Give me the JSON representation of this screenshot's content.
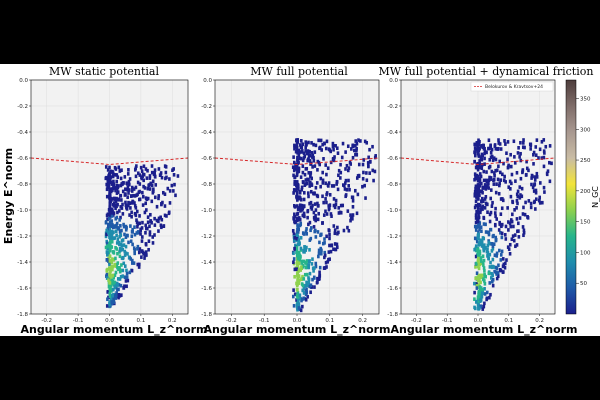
{
  "chart_data": [
    {
      "type": "heatmap",
      "title": "MW static potential",
      "xlabel": "Angular momentum L_z^norm",
      "ylabel": "Energy E^norm",
      "xlim": [
        -0.25,
        0.25
      ],
      "ylim": [
        -1.8,
        0.0
      ],
      "x_ticks": [
        "-0.2",
        "-0.1",
        "0.0",
        "0.1",
        "0.2"
      ],
      "y_ticks": [
        "-1.8",
        "-1.6",
        "-1.4",
        "-1.2",
        "-1.0",
        "-0.8",
        "-0.6",
        "-0.4",
        "-0.2",
        "0.0"
      ],
      "grid": true,
      "boundary_curve": {
        "x": [
          -0.25,
          -0.15,
          -0.05,
          0.0,
          0.05,
          0.15,
          0.25
        ],
        "y": [
          -0.6,
          -0.62,
          -0.64,
          -0.65,
          -0.64,
          -0.62,
          -0.6
        ]
      },
      "distribution": {
        "x_center": 0.0,
        "x_spread_low": 0.0,
        "x_spread_high": 0.22,
        "e_min": -1.76,
        "e_max": -0.66,
        "peak_energy": -1.45
      },
      "legend": null
    },
    {
      "type": "heatmap",
      "title": "MW full potential",
      "xlabel": "Angular momentum L_z^norm",
      "ylabel": "",
      "xlim": [
        -0.25,
        0.25
      ],
      "ylim": [
        -1.8,
        0.0
      ],
      "x_ticks": [
        "-0.2",
        "-0.1",
        "0.0",
        "0.1",
        "0.2"
      ],
      "y_ticks": [
        "-1.8",
        "-1.6",
        "-1.4",
        "-1.2",
        "-1.0",
        "-0.8",
        "-0.6",
        "-0.4",
        "-0.2",
        "0.0"
      ],
      "grid": true,
      "boundary_curve": {
        "x": [
          -0.25,
          -0.15,
          -0.05,
          0.0,
          0.05,
          0.15,
          0.25
        ],
        "y": [
          -0.6,
          -0.62,
          -0.64,
          -0.65,
          -0.64,
          -0.62,
          -0.6
        ]
      },
      "distribution": {
        "x_center": 0.0,
        "x_spread_low": 0.0,
        "x_spread_high": 0.24,
        "e_min": -1.78,
        "e_max": -0.46,
        "peak_energy": -1.5
      },
      "legend": null
    },
    {
      "type": "heatmap",
      "title": "MW full potential + dynamical friction",
      "xlabel": "Angular momentum L_z^norm",
      "ylabel": "",
      "xlim": [
        -0.25,
        0.25
      ],
      "ylim": [
        -1.8,
        0.0
      ],
      "x_ticks": [
        "-0.2",
        "-0.1",
        "0.0",
        "0.1",
        "0.2"
      ],
      "y_ticks": [
        "-1.8",
        "-1.6",
        "-1.4",
        "-1.2",
        "-1.0",
        "-0.8",
        "-0.6",
        "-0.4",
        "-0.2",
        "0.0"
      ],
      "grid": true,
      "boundary_curve": {
        "x": [
          -0.25,
          -0.15,
          -0.05,
          0.0,
          0.05,
          0.15,
          0.25
        ],
        "y": [
          -0.6,
          -0.62,
          -0.64,
          -0.65,
          -0.64,
          -0.62,
          -0.6
        ]
      },
      "distribution": {
        "x_center": 0.0,
        "x_spread_low": 0.0,
        "x_spread_high": 0.24,
        "e_min": -1.78,
        "e_max": -0.46,
        "peak_energy": -1.5
      },
      "legend": {
        "label": "Belokurov & Kravtsov+24",
        "placement": "top-right",
        "style": "red dashed line"
      }
    }
  ],
  "colorbar": {
    "label": "N_GC",
    "range": [
      0,
      380
    ],
    "ticks": [
      "50",
      "100",
      "150",
      "200",
      "250",
      "300",
      "350"
    ],
    "colormap": [
      "#1b1f8c",
      "#1f5aa8",
      "#1f8dad",
      "#27b58b",
      "#8ed14e",
      "#f2e43a",
      "#c9bca4",
      "#a89890",
      "#7f6d69",
      "#4e3d3c"
    ]
  },
  "colors": {
    "boundary": "#d62728",
    "panel_background": "#f2f2f2",
    "grid": "#dddddd"
  }
}
